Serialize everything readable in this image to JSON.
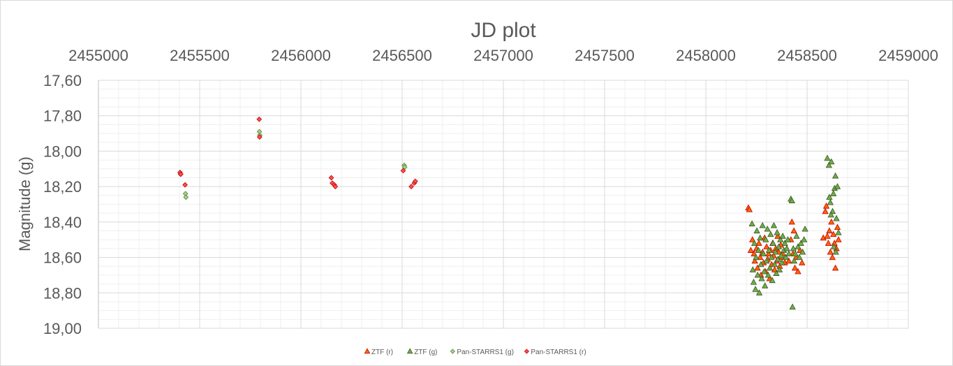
{
  "chart_data": {
    "type": "scatter",
    "title": "JD plot",
    "xlabel": "",
    "ylabel": "Magnitude (g)",
    "xlim": [
      2455000,
      2459000
    ],
    "ylim": [
      17.6,
      19.0
    ],
    "y_reversed": true,
    "x_axis_position": "top",
    "grid": true,
    "legend_position": "bottom",
    "x_ticks": [
      "2455000",
      "2455500",
      "2456000",
      "2456500",
      "2457000",
      "2457500",
      "2458000",
      "2458500",
      "2459000"
    ],
    "y_ticks": [
      "17,60",
      "17,80",
      "18,00",
      "18,20",
      "18,40",
      "18,60",
      "18,80",
      "19,00"
    ],
    "series": [
      {
        "name": "ZTF (r)",
        "marker": "triangle",
        "color": "#ff6600",
        "stroke": "#c00000",
        "points": [
          [
            2458210,
            18.32
          ],
          [
            2458215,
            18.33
          ],
          [
            2458222,
            18.56
          ],
          [
            2458230,
            18.5
          ],
          [
            2458238,
            18.58
          ],
          [
            2458242,
            18.62
          ],
          [
            2458250,
            18.55
          ],
          [
            2458255,
            18.66
          ],
          [
            2458262,
            18.52
          ],
          [
            2458268,
            18.6
          ],
          [
            2458272,
            18.7
          ],
          [
            2458280,
            18.57
          ],
          [
            2458285,
            18.63
          ],
          [
            2458290,
            18.49
          ],
          [
            2458295,
            18.68
          ],
          [
            2458300,
            18.54
          ],
          [
            2458305,
            18.61
          ],
          [
            2458310,
            18.58
          ],
          [
            2458315,
            18.72
          ],
          [
            2458320,
            18.56
          ],
          [
            2458325,
            18.64
          ],
          [
            2458330,
            18.52
          ],
          [
            2458335,
            18.59
          ],
          [
            2458340,
            18.67
          ],
          [
            2458345,
            18.55
          ],
          [
            2458350,
            18.62
          ],
          [
            2458355,
            18.48
          ],
          [
            2458360,
            18.57
          ],
          [
            2458365,
            18.65
          ],
          [
            2458370,
            18.53
          ],
          [
            2458375,
            18.6
          ],
          [
            2458380,
            18.58
          ],
          [
            2458390,
            18.63
          ],
          [
            2458400,
            18.55
          ],
          [
            2458410,
            18.62
          ],
          [
            2458420,
            18.5
          ],
          [
            2458425,
            18.4
          ],
          [
            2458430,
            18.58
          ],
          [
            2458435,
            18.45
          ],
          [
            2458440,
            18.66
          ],
          [
            2458445,
            18.6
          ],
          [
            2458455,
            18.68
          ],
          [
            2458465,
            18.56
          ],
          [
            2458475,
            18.63
          ],
          [
            2458580,
            18.49
          ],
          [
            2458590,
            18.34
          ],
          [
            2458595,
            18.31
          ],
          [
            2458600,
            18.48
          ],
          [
            2458605,
            18.52
          ],
          [
            2458610,
            18.45
          ],
          [
            2458615,
            18.57
          ],
          [
            2458620,
            18.4
          ],
          [
            2458625,
            18.6
          ],
          [
            2458630,
            18.47
          ],
          [
            2458635,
            18.52
          ],
          [
            2458640,
            18.66
          ],
          [
            2458645,
            18.55
          ],
          [
            2458650,
            18.43
          ],
          [
            2458655,
            18.5
          ]
        ]
      },
      {
        "name": "ZTF (g)",
        "marker": "triangle",
        "color": "#70ad47",
        "stroke": "#375623",
        "points": [
          [
            2458228,
            18.41
          ],
          [
            2458232,
            18.67
          ],
          [
            2458236,
            18.74
          ],
          [
            2458240,
            18.52
          ],
          [
            2458245,
            18.78
          ],
          [
            2458248,
            18.6
          ],
          [
            2458252,
            18.45
          ],
          [
            2458256,
            18.7
          ],
          [
            2458260,
            18.56
          ],
          [
            2458264,
            18.8
          ],
          [
            2458268,
            18.49
          ],
          [
            2458272,
            18.64
          ],
          [
            2458276,
            18.72
          ],
          [
            2458280,
            18.42
          ],
          [
            2458284,
            18.58
          ],
          [
            2458288,
            18.68
          ],
          [
            2458292,
            18.76
          ],
          [
            2458296,
            18.5
          ],
          [
            2458300,
            18.62
          ],
          [
            2458304,
            18.44
          ],
          [
            2458308,
            18.7
          ],
          [
            2458312,
            18.56
          ],
          [
            2458316,
            18.66
          ],
          [
            2458320,
            18.47
          ],
          [
            2458324,
            18.6
          ],
          [
            2458328,
            18.73
          ],
          [
            2458332,
            18.52
          ],
          [
            2458336,
            18.42
          ],
          [
            2458340,
            18.64
          ],
          [
            2458344,
            18.57
          ],
          [
            2458348,
            18.69
          ],
          [
            2458352,
            18.46
          ],
          [
            2458356,
            18.61
          ],
          [
            2458360,
            18.54
          ],
          [
            2458364,
            18.67
          ],
          [
            2458368,
            18.5
          ],
          [
            2458372,
            18.59
          ],
          [
            2458376,
            18.63
          ],
          [
            2458380,
            18.48
          ],
          [
            2458385,
            18.56
          ],
          [
            2458390,
            18.52
          ],
          [
            2458395,
            18.6
          ],
          [
            2458400,
            18.55
          ],
          [
            2458405,
            18.5
          ],
          [
            2458410,
            18.58
          ],
          [
            2458420,
            18.27
          ],
          [
            2458425,
            18.28
          ],
          [
            2458428,
            18.88
          ],
          [
            2458432,
            18.55
          ],
          [
            2458436,
            18.62
          ],
          [
            2458442,
            18.58
          ],
          [
            2458448,
            18.48
          ],
          [
            2458455,
            18.54
          ],
          [
            2458462,
            18.6
          ],
          [
            2458470,
            18.52
          ],
          [
            2458478,
            18.57
          ],
          [
            2458485,
            18.5
          ],
          [
            2458490,
            18.44
          ],
          [
            2458600,
            18.04
          ],
          [
            2458608,
            18.08
          ],
          [
            2458615,
            18.29
          ],
          [
            2458620,
            18.06
          ],
          [
            2458626,
            18.34
          ],
          [
            2458630,
            18.24
          ],
          [
            2458636,
            18.21
          ],
          [
            2458640,
            18.14
          ],
          [
            2458645,
            18.38
          ],
          [
            2458650,
            18.2
          ],
          [
            2458655,
            18.46
          ],
          [
            2458610,
            18.26
          ],
          [
            2458618,
            18.36
          ],
          [
            2458632,
            18.54
          ],
          [
            2458642,
            18.57
          ]
        ]
      },
      {
        "name": "Pan-STARRS1 (g)",
        "marker": "diamond",
        "color": "#a9d18e",
        "stroke": "#548235",
        "points": [
          [
            2455405,
            18.13
          ],
          [
            2455430,
            18.24
          ],
          [
            2455432,
            18.26
          ],
          [
            2455795,
            17.89
          ],
          [
            2455797,
            17.91
          ],
          [
            2456510,
            18.08
          ],
          [
            2456513,
            18.09
          ]
        ]
      },
      {
        "name": "Pan-STARRS1 (r)",
        "marker": "diamond",
        "color": "#ff5050",
        "stroke": "#c00000",
        "points": [
          [
            2455403,
            18.12
          ],
          [
            2455407,
            18.13
          ],
          [
            2455428,
            18.19
          ],
          [
            2455794,
            17.82
          ],
          [
            2455796,
            17.92
          ],
          [
            2456150,
            18.15
          ],
          [
            2456155,
            18.18
          ],
          [
            2456165,
            18.19
          ],
          [
            2456170,
            18.2
          ],
          [
            2456505,
            18.11
          ],
          [
            2456545,
            18.2
          ],
          [
            2456560,
            18.18
          ],
          [
            2456565,
            18.17
          ]
        ]
      }
    ]
  }
}
